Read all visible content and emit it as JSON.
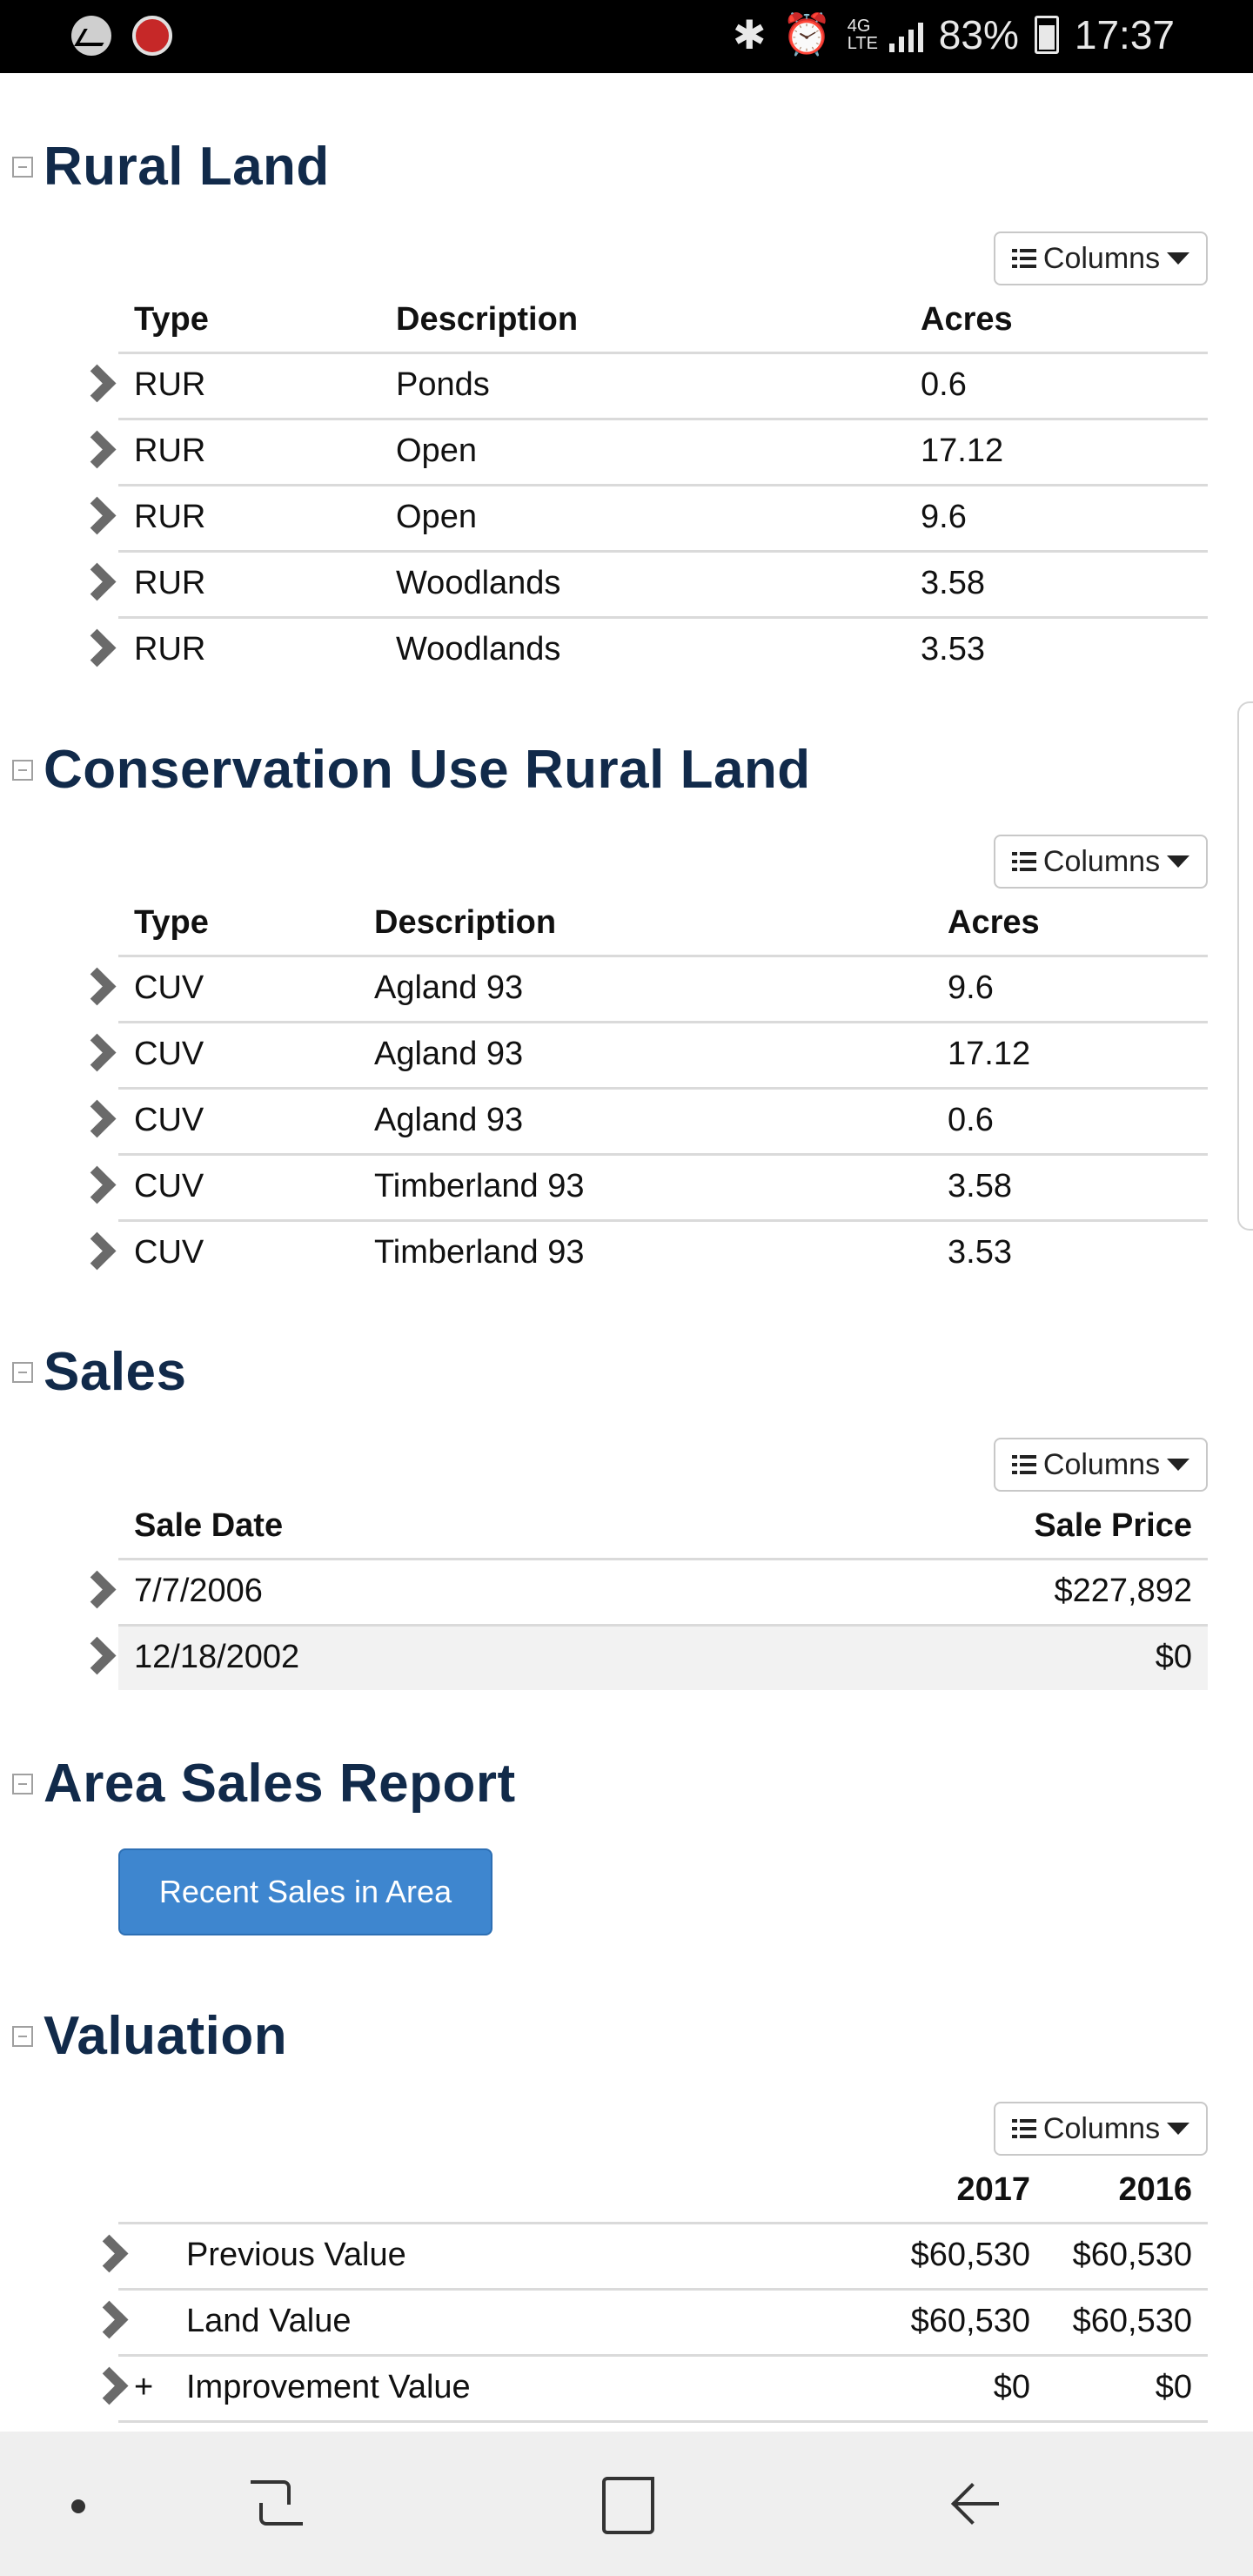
{
  "status_bar": {
    "battery": "83%",
    "time": "17:37",
    "network": "4G LTE"
  },
  "columns_label": "Columns",
  "rural_land": {
    "title": "Rural Land",
    "headers": [
      "Type",
      "Description",
      "Acres"
    ],
    "rows": [
      {
        "type": "RUR",
        "description": "Ponds",
        "acres": "0.6"
      },
      {
        "type": "RUR",
        "description": "Open",
        "acres": "17.12"
      },
      {
        "type": "RUR",
        "description": "Open",
        "acres": "9.6"
      },
      {
        "type": "RUR",
        "description": "Woodlands",
        "acres": "3.58"
      },
      {
        "type": "RUR",
        "description": "Woodlands",
        "acres": "3.53"
      }
    ]
  },
  "cuv": {
    "title": "Conservation Use Rural Land",
    "headers": [
      "Type",
      "Description",
      "Acres"
    ],
    "rows": [
      {
        "type": "CUV",
        "description": "Agland 93",
        "acres": "9.6"
      },
      {
        "type": "CUV",
        "description": "Agland 93",
        "acres": "17.12"
      },
      {
        "type": "CUV",
        "description": "Agland 93",
        "acres": "0.6"
      },
      {
        "type": "CUV",
        "description": "Timberland 93",
        "acres": "3.58"
      },
      {
        "type": "CUV",
        "description": "Timberland 93",
        "acres": "3.53"
      }
    ]
  },
  "sales": {
    "title": "Sales",
    "headers": [
      "Sale Date",
      "Sale Price"
    ],
    "rows": [
      {
        "date": "7/7/2006",
        "price": "$227,892"
      },
      {
        "date": "12/18/2002",
        "price": "$0"
      }
    ]
  },
  "area_sales": {
    "title": "Area Sales Report",
    "button_label": "Recent Sales in Area"
  },
  "valuation": {
    "title": "Valuation",
    "headers": [
      "2017",
      "2016"
    ],
    "rows": [
      {
        "prefix": "",
        "label": "Previous Value",
        "v2017": "$60,530",
        "v2016": "$60,530"
      },
      {
        "prefix": "",
        "label": "Land Value",
        "v2017": "$60,530",
        "v2016": "$60,530"
      },
      {
        "prefix": "+",
        "label": "Improvement Value",
        "v2017": "$0",
        "v2016": "$0"
      }
    ]
  }
}
